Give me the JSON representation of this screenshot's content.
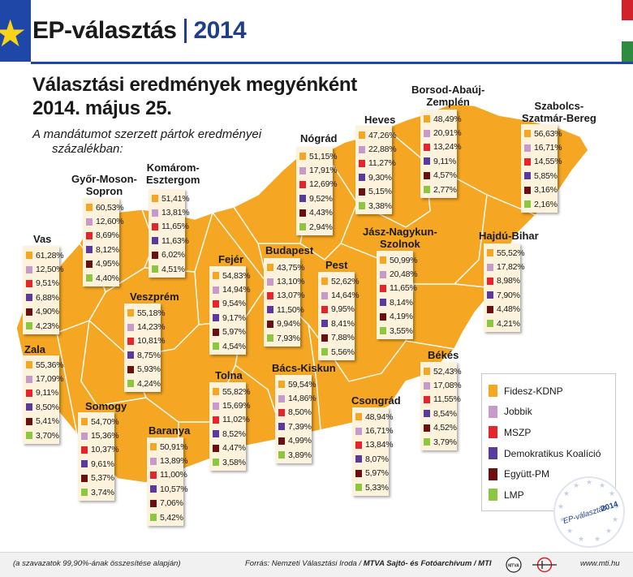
{
  "header": {
    "title": "EP-választás",
    "year": "2014"
  },
  "subtitle_line1": "Választási eredmények megyénként",
  "subtitle_line2": "2014. május 25.",
  "note_line1": "A mandátumot szerzett pártok eredményei",
  "note_line2": "százalékban:",
  "colors": {
    "map_fill": "#f5a623",
    "fidesz": "#f5a623",
    "jobbik": "#c79ac9",
    "mszp": "#e4262c",
    "dk": "#5b3a9e",
    "egyutt": "#6a1010",
    "lmp": "#8dc63f"
  },
  "legend": [
    {
      "label": "Fidesz-KDNP",
      "color": "#f5a623"
    },
    {
      "label": "Jobbik",
      "color": "#c79ac9"
    },
    {
      "label": "MSZP",
      "color": "#e4262c"
    },
    {
      "label": "Demokratikus Koalíció",
      "color": "#5b3a9e"
    },
    {
      "label": "Együtt-PM",
      "color": "#6a1010"
    },
    {
      "label": "LMP",
      "color": "#8dc63f"
    }
  ],
  "counties": {
    "vas": {
      "name": "Vas",
      "values": [
        "61,28%",
        "12,50%",
        "9,51%",
        "6,88%",
        "4,90%",
        "4,23%"
      ]
    },
    "gyor": {
      "name_1": "Győr-Moson-",
      "name_2": "Sopron",
      "values": [
        "60,53%",
        "12,60%",
        "8,69%",
        "8,12%",
        "4,95%",
        "4,40%"
      ]
    },
    "komarom": {
      "name_1": "Komárom-",
      "name_2": "Esztergom",
      "values": [
        "51,41%",
        "13,81%",
        "11,65%",
        "11,63%",
        "6,02%",
        "4,51%"
      ]
    },
    "nograd": {
      "name": "Nógrád",
      "values": [
        "51,15%",
        "17,91%",
        "12,69%",
        "9,52%",
        "4,43%",
        "2,94%"
      ]
    },
    "heves": {
      "name": "Heves",
      "values": [
        "47,26%",
        "22,88%",
        "11,27%",
        "9,30%",
        "5,15%",
        "3,38%"
      ]
    },
    "borsod": {
      "name_1": "Borsod-Abaúj-",
      "name_2": "Zemplén",
      "values": [
        "48,49%",
        "20,91%",
        "13,24%",
        "9,11%",
        "4,57%",
        "2,77%"
      ]
    },
    "szabolcs": {
      "name_1": "Szabolcs-",
      "name_2": "Szatmár-Bereg",
      "values": [
        "56,63%",
        "16,71%",
        "14,55%",
        "5,85%",
        "3,16%",
        "2,16%"
      ]
    },
    "veszprem": {
      "name": "Veszprém",
      "values": [
        "55,18%",
        "14,23%",
        "10,81%",
        "8,75%",
        "5,93%",
        "4,24%"
      ]
    },
    "fejer": {
      "name": "Fejér",
      "values": [
        "54,83%",
        "14,94%",
        "9,54%",
        "9,17%",
        "5,97%",
        "4,54%"
      ]
    },
    "budapest": {
      "name": "Budapest",
      "values": [
        "43,75%",
        "13,10%",
        "13,07%",
        "11,50%",
        "9,94%",
        "7,93%"
      ]
    },
    "pest": {
      "name": "Pest",
      "values": [
        "52,62%",
        "14,64%",
        "9,95%",
        "8,41%",
        "7,88%",
        "5,56%"
      ]
    },
    "jasz": {
      "name_1": "Jász-Nagykun-",
      "name_2": "Szolnok",
      "values": [
        "50,99%",
        "20,48%",
        "11,65%",
        "8,14%",
        "4,19%",
        "3,55%"
      ]
    },
    "hajdu": {
      "name": "Hajdú-Bihar",
      "values": [
        "55,52%",
        "17,82%",
        "8,98%",
        "7,90%",
        "4,48%",
        "4,21%"
      ]
    },
    "zala": {
      "name": "Zala",
      "values": [
        "55,36%",
        "17,09%",
        "9,11%",
        "8,50%",
        "5,41%",
        "3,70%"
      ]
    },
    "somogy": {
      "name": "Somogy",
      "values": [
        "54,70%",
        "15,36%",
        "10,37%",
        "9,61%",
        "5,37%",
        "3,74%"
      ]
    },
    "baranya": {
      "name": "Baranya",
      "values": [
        "50,91%",
        "13,89%",
        "11,00%",
        "10,57%",
        "7,06%",
        "5,42%"
      ]
    },
    "tolna": {
      "name": "Tolna",
      "values": [
        "55,82%",
        "15,69%",
        "11,02%",
        "8,52%",
        "4,47%",
        "3,58%"
      ]
    },
    "bacs": {
      "name": "Bács-Kiskun",
      "values": [
        "59,54%",
        "14,86%",
        "8,50%",
        "7,39%",
        "4,99%",
        "3,89%"
      ]
    },
    "csongrad": {
      "name": "Csongrád",
      "values": [
        "48,94%",
        "16,71%",
        "13,84%",
        "8,07%",
        "5,97%",
        "5,33%"
      ]
    },
    "bekes": {
      "name": "Békés",
      "values": [
        "52,43%",
        "17,08%",
        "11,55%",
        "8,54%",
        "4,52%",
        "3,79%"
      ]
    }
  },
  "stamp": {
    "text": "EP-választás",
    "year": "2014"
  },
  "footer": {
    "left": "(a szavazatok 99,90%-ának összesítése alapján)",
    "source_prefix": "Forrás: Nemzeti Választási Iroda / ",
    "source_bold": "MTVA Sajtó- és Fotóarchívum / MTI",
    "logo_mtva": "MTVA",
    "url": "www.mti.hu"
  }
}
